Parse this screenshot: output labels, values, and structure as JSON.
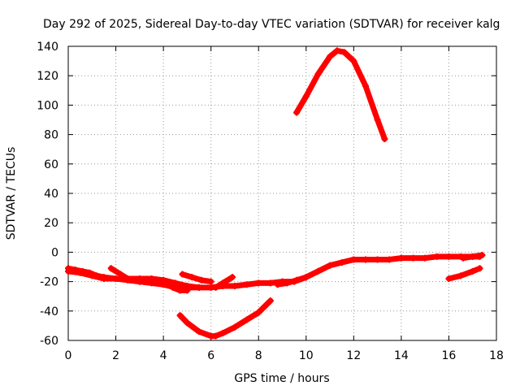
{
  "chart_data": {
    "type": "scatter",
    "title": "Day 292 of 2025, Sidereal Day-to-day VTEC variation (SDTVAR) for receiver kalg",
    "xlabel": "GPS time / hours",
    "ylabel": "SDTVAR / TECUs",
    "xlim": [
      0,
      18
    ],
    "ylim": [
      -60,
      140
    ],
    "xticks": [
      0,
      2,
      4,
      6,
      8,
      10,
      12,
      14,
      16,
      18
    ],
    "yticks": [
      -60,
      -40,
      -20,
      0,
      20,
      40,
      60,
      80,
      100,
      120,
      140
    ],
    "grid": true,
    "marker": "plus",
    "series_color": "#ff0000",
    "series": [
      {
        "name": "main-track",
        "x": [
          0,
          0.5,
          1,
          1.5,
          2,
          2.5,
          3,
          3.5,
          4,
          4.5,
          5,
          5.5,
          6,
          6.5,
          7,
          7.5,
          8,
          8.5,
          9,
          9.5,
          10,
          10.5,
          11,
          11.5,
          12,
          12.5,
          13,
          13.5,
          14,
          14.5,
          15,
          15.5,
          16,
          16.5,
          17,
          17.3
        ],
        "y": [
          -13,
          -14,
          -16,
          -18,
          -18,
          -19,
          -20,
          -21,
          -22,
          -24,
          -24,
          -24,
          -24,
          -23,
          -23,
          -22,
          -21,
          -21,
          -20,
          -20,
          -17,
          -13,
          -9,
          -7,
          -5,
          -5,
          -5,
          -5,
          -4,
          -4,
          -4,
          -3,
          -3,
          -3,
          -3,
          -3
        ]
      },
      {
        "name": "start-arc",
        "x": [
          0,
          0.3,
          0.6,
          0.9,
          1.2,
          1.5,
          2
        ],
        "y": [
          -11,
          -12,
          -13,
          -14,
          -16,
          -17,
          -18
        ]
      },
      {
        "name": "hump-2-4",
        "x": [
          1.8,
          2.2,
          2.6,
          3.0,
          3.4,
          3.8,
          4.1,
          4.4,
          4.7,
          5.0
        ],
        "y": [
          -11,
          -15,
          -19,
          -20,
          -19,
          -19,
          -21,
          -24,
          -26,
          -26
        ]
      },
      {
        "name": "hump-3-5",
        "x": [
          2.5,
          3.0,
          3.5,
          4.0,
          4.5,
          5.0,
          5.5
        ],
        "y": [
          -18,
          -18,
          -18,
          -19,
          -21,
          -23,
          -24
        ]
      },
      {
        "name": "branch-5-6",
        "x": [
          4.8,
          5.2,
          5.6,
          6.0
        ],
        "y": [
          -15,
          -17,
          -19,
          -20
        ]
      },
      {
        "name": "branch-6-7",
        "x": [
          6.2,
          6.5,
          6.9
        ],
        "y": [
          -24,
          -21,
          -17
        ]
      },
      {
        "name": "branch-9-10",
        "x": [
          8.8,
          9.2,
          9.6,
          10.0
        ],
        "y": [
          -22,
          -21,
          -19,
          -17
        ]
      },
      {
        "name": "dip",
        "x": [
          4.7,
          5.0,
          5.5,
          6.0,
          6.2,
          6.5,
          7.0,
          7.5,
          8.0,
          8.5
        ],
        "y": [
          -43,
          -48,
          -54,
          -57,
          -57,
          -55,
          -51,
          -46,
          -41,
          -33
        ]
      },
      {
        "name": "peak",
        "x": [
          9.6,
          10.0,
          10.5,
          11.0,
          11.3,
          11.6,
          12.0,
          12.5,
          13.0,
          13.3
        ],
        "y": [
          95,
          106,
          121,
          133,
          137,
          136,
          130,
          113,
          90,
          77
        ]
      },
      {
        "name": "tail-16-17",
        "x": [
          16.0,
          16.5,
          17.0,
          17.3
        ],
        "y": [
          -18,
          -16,
          -13,
          -11
        ]
      },
      {
        "name": "tail-17",
        "x": [
          16.6,
          17.0,
          17.4
        ],
        "y": [
          -4,
          -3,
          -2
        ]
      }
    ]
  }
}
